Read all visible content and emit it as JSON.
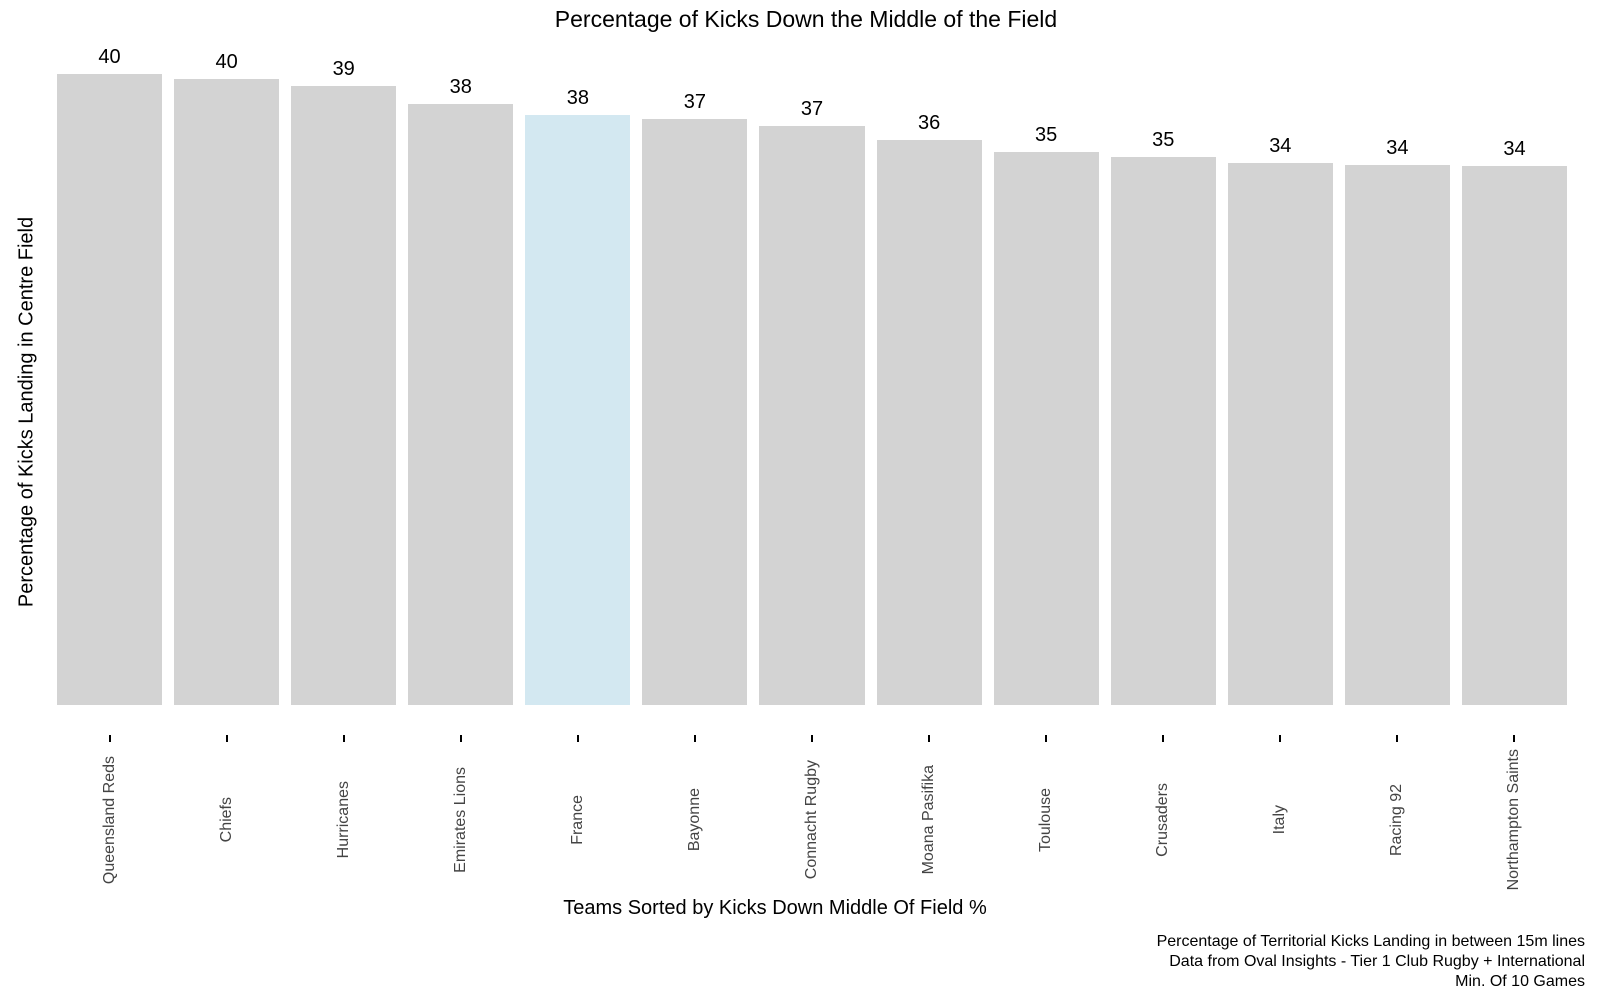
{
  "colors": {
    "background": "#ffffff",
    "bar_default": "#d3d3d3",
    "bar_highlight": "#d3e8f1",
    "tick": "#000000",
    "team_label_text": "#444444",
    "text": "#000000"
  },
  "chart_data": {
    "type": "bar",
    "title": "Percentage of Kicks Down the Middle of the Field",
    "xlabel": "Teams Sorted by Kicks Down Middle Of Field %",
    "ylabel": "Percentage of Kicks Landing in Centre Field",
    "categories": [
      "Queensland Reds",
      "Chiefs",
      "Hurricanes",
      "Emirates Lions",
      "France",
      "Bayonne",
      "Connacht Rugby",
      "Moana Pasifika",
      "Toulouse",
      "Crusaders",
      "Italy",
      "Racing 92",
      "Northampton Saints"
    ],
    "values": [
      40,
      40,
      39,
      38,
      38,
      37,
      37,
      36,
      35,
      35,
      34,
      34,
      34
    ],
    "values_precise": [
      40.2,
      39.9,
      39.4,
      38.3,
      37.6,
      37.3,
      36.9,
      36.0,
      35.2,
      34.9,
      34.5,
      34.4,
      34.3
    ],
    "highlighted_category": "France",
    "bar_labels_shown": true,
    "grid": false,
    "legend": false,
    "ylim": [
      0,
      42
    ],
    "caption_lines": [
      "Percentage of Territorial Kicks Landing in between 15m lines",
      "Data from Oval Insights - Tier 1 Club Rugby + International",
      "Min. Of 10 Games"
    ]
  }
}
